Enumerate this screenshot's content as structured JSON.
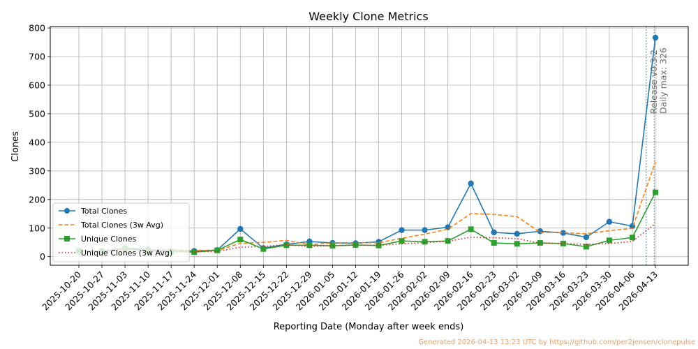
{
  "chart_data": {
    "type": "line",
    "title": "Weekly Clone Metrics",
    "xlabel": "Reporting Date (Monday after week ends)",
    "ylabel": "Clones",
    "ylim": [
      -30,
      805
    ],
    "yticks": [
      0,
      100,
      200,
      300,
      400,
      500,
      600,
      700,
      800
    ],
    "grid": true,
    "legend_position": "lower-left",
    "categories": [
      "2025-10-20",
      "2025-10-27",
      "2025-11-03",
      "2025-11-10",
      "2025-11-17",
      "2025-11-24",
      "2025-12-01",
      "2025-12-08",
      "2025-12-15",
      "2025-12-22",
      "2025-12-29",
      "2026-01-05",
      "2026-01-12",
      "2026-01-19",
      "2026-01-26",
      "2026-02-02",
      "2026-02-09",
      "2026-02-16",
      "2026-02-23",
      "2026-03-02",
      "2026-03-09",
      "2026-03-16",
      "2026-03-23",
      "2026-03-30",
      "2026-04-06",
      "2026-04-13"
    ],
    "series": [
      {
        "name": "Total Clones",
        "color": "#1f77b4",
        "line_style": "solid",
        "marker": "circle",
        "values": [
          20,
          20,
          30,
          25,
          20,
          20,
          23,
          97,
          30,
          43,
          53,
          48,
          47,
          52,
          93,
          93,
          103,
          256,
          85,
          80,
          89,
          83,
          68,
          122,
          107,
          766
        ]
      },
      {
        "name": "Total Clones (3w Avg)",
        "color": "#ff7f0e",
        "line_style": "dashed",
        "marker": "none",
        "values": [
          20,
          20,
          23,
          25,
          25,
          22,
          21,
          47,
          50,
          57,
          42,
          48,
          49,
          49,
          64,
          79,
          96,
          151,
          148,
          140,
          85,
          84,
          80,
          91,
          99,
          332
        ]
      },
      {
        "name": "Unique Clones",
        "color": "#2ca02c",
        "line_style": "solid",
        "marker": "square",
        "values": [
          20,
          18,
          28,
          20,
          17,
          16,
          22,
          60,
          27,
          40,
          40,
          38,
          41,
          39,
          55,
          52,
          55,
          96,
          48,
          45,
          48,
          46,
          35,
          57,
          67,
          225
        ]
      },
      {
        "name": "Unique Clones (3w Avg)",
        "color": "#d62728",
        "line_style": "dotted",
        "marker": "none",
        "values": [
          20,
          19,
          22,
          22,
          22,
          18,
          18,
          33,
          36,
          42,
          36,
          39,
          40,
          40,
          45,
          49,
          54,
          68,
          66,
          63,
          47,
          46,
          43,
          46,
          53,
          116
        ]
      }
    ],
    "annotations": [
      {
        "text": "Release v0.3.2",
        "color": "#1f77b4",
        "line_style": "dotted",
        "x_index": 24.6
      },
      {
        "text": "Daily max: 326",
        "color": "#1f77b4",
        "line_style": "dotted",
        "x_index": 24.95
      }
    ]
  },
  "footer_text": "Generated 2026-04-13 13:23 UTC by https://github.com/per2jensen/clonepulse"
}
